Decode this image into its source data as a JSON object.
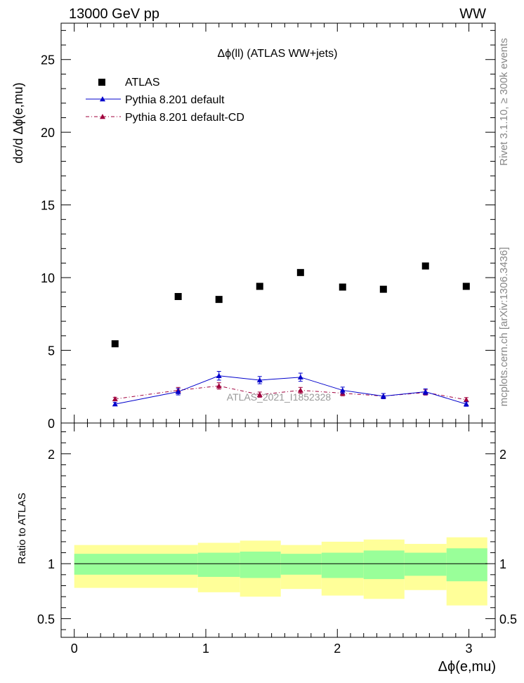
{
  "header": {
    "left": "13000 GeV pp",
    "right": "WW"
  },
  "side_labels": {
    "rivet": "Rivet 3.1.10, ≥ 300k events",
    "mcplots": "mcplots.cern.ch [arXiv:1306.3436]"
  },
  "colors": {
    "atlas": "#000000",
    "pythia_default": "#0000cc",
    "pythia_cd": "#a0003c",
    "band_inner": "#99ff99",
    "band_outer": "#ffff99"
  },
  "chart_data": [
    {
      "type": "scatter",
      "title": "Δϕ(ll) (ATLAS WW+jets)",
      "ylabel": "dσ/d Δϕ(e,mu)",
      "xlabel": "",
      "xlim": [
        -0.1,
        3.2
      ],
      "ylim": [
        0,
        27.5
      ],
      "y_ticks": [
        0,
        5,
        10,
        15,
        20,
        25
      ],
      "watermark": "ATLAS_2021_I1852328",
      "legend_position": "top-left",
      "grid": false,
      "series": [
        {
          "name": "ATLAS",
          "marker": "square",
          "x": [
            0.31,
            0.79,
            1.1,
            1.41,
            1.72,
            2.04,
            2.35,
            2.67,
            2.98
          ],
          "y": [
            5.45,
            8.7,
            8.5,
            9.4,
            10.35,
            9.35,
            9.2,
            10.8,
            9.4
          ]
        },
        {
          "name": "Pythia 8.201 default",
          "marker": "triangle",
          "line": "solid",
          "x": [
            0.31,
            0.79,
            1.1,
            1.41,
            1.72,
            2.04,
            2.35,
            2.67,
            2.98
          ],
          "y": [
            1.3,
            2.15,
            3.25,
            2.95,
            3.15,
            2.25,
            1.85,
            2.15,
            1.3
          ],
          "err": [
            0.12,
            0.22,
            0.3,
            0.25,
            0.28,
            0.22,
            0.18,
            0.2,
            0.15
          ]
        },
        {
          "name": "Pythia 8.201 default-CD",
          "marker": "triangle",
          "line": "dashdot",
          "x": [
            0.31,
            0.79,
            1.1,
            1.41,
            1.72,
            2.04,
            2.35,
            2.67,
            2.98
          ],
          "y": [
            1.65,
            2.25,
            2.55,
            1.95,
            2.25,
            2.05,
            1.85,
            2.1,
            1.6
          ],
          "err": [
            0.12,
            0.2,
            0.22,
            0.18,
            0.2,
            0.18,
            0.18,
            0.18,
            0.15
          ]
        }
      ]
    },
    {
      "type": "area",
      "title": "",
      "ylabel": "Ratio to ATLAS",
      "xlabel": "Δϕ(e,mu)",
      "xlim": [
        -0.1,
        3.2
      ],
      "ylim": [
        0.33,
        2.28
      ],
      "y_ticks": [
        0.5,
        1,
        2
      ],
      "x_ticks": [
        0,
        1,
        2,
        3
      ],
      "grid": false,
      "bins": [
        0.0,
        0.94,
        1.26,
        1.57,
        1.88,
        2.2,
        2.51,
        2.83,
        3.14
      ],
      "band_inner_low": [
        0.9,
        0.88,
        0.87,
        0.9,
        0.87,
        0.86,
        0.89,
        0.84
      ],
      "band_inner_high": [
        1.09,
        1.1,
        1.11,
        1.09,
        1.1,
        1.12,
        1.1,
        1.14
      ],
      "band_outer_low": [
        0.78,
        0.74,
        0.7,
        0.77,
        0.71,
        0.68,
        0.76,
        0.62
      ],
      "band_outer_high": [
        1.17,
        1.19,
        1.21,
        1.17,
        1.2,
        1.22,
        1.18,
        1.24
      ],
      "reference_line": 1
    }
  ]
}
